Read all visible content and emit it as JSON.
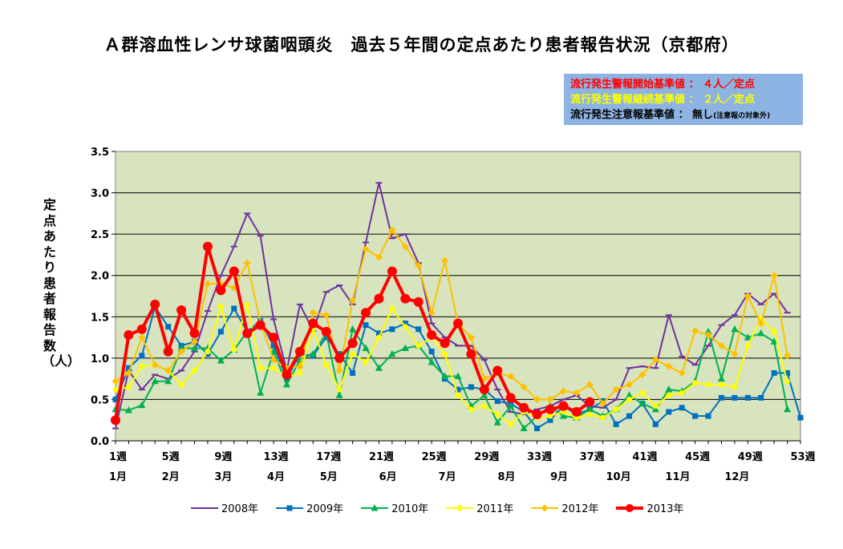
{
  "title": "Ａ群溶血性レンサ球菌咽頭炎　過去５年間の定点あたり患者報告状況（京都府）",
  "info": {
    "line1": "流行発生警報開始基準値 ： ４人／定点",
    "line2": "流行発生警報継続基準値 ： ２人／定点",
    "line3": "流行発生注意報基準値 ： 無し",
    "line3_note": "(注意報の対象外)"
  },
  "ylabel": "定点あたり患者報告数（人）",
  "colors": {
    "plot_bg": "#d7e4bd",
    "info_bg": "#8db3e2"
  },
  "chart_data": {
    "type": "line",
    "ylim": [
      0,
      3.5
    ],
    "yticks": [
      "0.0",
      "0.5",
      "1.0",
      "1.5",
      "2.0",
      "2.5",
      "3.0",
      "3.5"
    ],
    "xlim": [
      1,
      53
    ],
    "week_ticks": [
      {
        "w": 1,
        "label": "1週"
      },
      {
        "w": 5,
        "label": "5週"
      },
      {
        "w": 9,
        "label": "9週"
      },
      {
        "w": 13,
        "label": "13週"
      },
      {
        "w": 17,
        "label": "17週"
      },
      {
        "w": 21,
        "label": "21週"
      },
      {
        "w": 25,
        "label": "25週"
      },
      {
        "w": 29,
        "label": "29週"
      },
      {
        "w": 33,
        "label": "33週"
      },
      {
        "w": 37,
        "label": "37週"
      },
      {
        "w": 41,
        "label": "41週"
      },
      {
        "w": 45,
        "label": "45週"
      },
      {
        "w": 49,
        "label": "49週"
      },
      {
        "w": 53,
        "label": "53週"
      }
    ],
    "month_ticks": [
      {
        "w": 1,
        "label": "1月"
      },
      {
        "w": 5,
        "label": "2月"
      },
      {
        "w": 9,
        "label": "3月"
      },
      {
        "w": 13,
        "label": "4月"
      },
      {
        "w": 17,
        "label": "5月"
      },
      {
        "w": 21.5,
        "label": "6月"
      },
      {
        "w": 26,
        "label": "7月"
      },
      {
        "w": 30.5,
        "label": "8月"
      },
      {
        "w": 34.5,
        "label": "9月"
      },
      {
        "w": 39,
        "label": "10月"
      },
      {
        "w": 43.5,
        "label": "11月"
      },
      {
        "w": 48,
        "label": "12月"
      }
    ],
    "series": [
      {
        "name": "2008年",
        "color": "#7030a0",
        "marker": "dash",
        "width": 2,
        "values": [
          0.15,
          0.85,
          0.62,
          0.8,
          0.75,
          0.85,
          1.08,
          1.57,
          2.0,
          2.35,
          2.75,
          2.48,
          1.47,
          0.85,
          1.65,
          1.33,
          1.8,
          1.88,
          1.65,
          2.4,
          3.12,
          2.45,
          2.5,
          2.15,
          1.42,
          1.25,
          1.15,
          1.15,
          0.98,
          0.62,
          0.35,
          0.32,
          0.38,
          0.42,
          0.5,
          0.55,
          0.42,
          0.4,
          0.5,
          0.88,
          0.9,
          0.88,
          1.52,
          1.02,
          0.92,
          1.15,
          1.4,
          1.52,
          1.78,
          1.65,
          1.78,
          1.55
        ]
      },
      {
        "name": "2009年",
        "color": "#0070c0",
        "marker": "square",
        "width": 2,
        "values": [
          0.5,
          0.88,
          1.03,
          1.62,
          1.38,
          1.15,
          1.2,
          1.05,
          1.32,
          1.6,
          1.32,
          1.45,
          1.15,
          0.75,
          1.05,
          1.03,
          1.25,
          1.05,
          0.82,
          1.4,
          1.3,
          1.35,
          1.42,
          1.35,
          1.08,
          0.75,
          0.62,
          0.65,
          0.62,
          0.48,
          0.45,
          0.35,
          0.15,
          0.25,
          0.42,
          0.32,
          0.38,
          0.48,
          0.2,
          0.3,
          0.45,
          0.2,
          0.35,
          0.4,
          0.3,
          0.3,
          0.52,
          0.52,
          0.52,
          0.52,
          0.82,
          0.82,
          0.28
        ]
      },
      {
        "name": "2010年",
        "color": "#00b050",
        "marker": "triangle",
        "width": 2,
        "values": [
          0.38,
          0.37,
          0.43,
          0.72,
          0.72,
          1.12,
          1.12,
          1.12,
          0.97,
          1.1,
          1.32,
          0.58,
          1.08,
          0.68,
          0.98,
          1.05,
          1.3,
          0.55,
          1.35,
          1.12,
          0.88,
          1.05,
          1.12,
          1.15,
          0.95,
          0.78,
          0.78,
          0.42,
          0.55,
          0.22,
          0.42,
          0.15,
          0.3,
          0.42,
          0.3,
          0.28,
          0.38,
          0.3,
          0.38,
          0.55,
          0.45,
          0.38,
          0.62,
          0.6,
          0.72,
          1.32,
          0.75,
          1.35,
          1.25,
          1.3,
          1.2,
          0.38
        ]
      },
      {
        "name": "2011年",
        "color": "#ffff00",
        "marker": "circle",
        "width": 2,
        "values": [
          0.62,
          0.65,
          0.9,
          0.92,
          0.85,
          0.68,
          0.85,
          1.08,
          1.62,
          1.1,
          1.65,
          0.88,
          0.88,
          0.78,
          0.82,
          1.35,
          0.92,
          0.62,
          1.05,
          0.95,
          1.25,
          1.6,
          1.38,
          1.15,
          1.25,
          1.05,
          0.55,
          0.38,
          0.42,
          0.32,
          0.2,
          0.35,
          0.28,
          0.3,
          0.35,
          0.28,
          0.32,
          0.28,
          0.38,
          0.5,
          0.58,
          0.42,
          0.55,
          0.58,
          0.7,
          0.68,
          0.68,
          0.65,
          1.15,
          1.48,
          1.32,
          0.72
        ]
      },
      {
        "name": "2012年",
        "color": "#ffc000",
        "marker": "diamond",
        "width": 2,
        "values": [
          0.72,
          0.82,
          1.25,
          0.92,
          0.85,
          1.08,
          1.2,
          1.9,
          1.9,
          1.85,
          2.15,
          1.43,
          0.98,
          0.88,
          0.9,
          1.55,
          1.52,
          0.85,
          1.7,
          2.32,
          2.22,
          2.55,
          2.35,
          2.12,
          1.55,
          2.18,
          1.42,
          1.25,
          0.75,
          0.82,
          0.78,
          0.65,
          0.5,
          0.5,
          0.6,
          0.58,
          0.68,
          0.45,
          0.62,
          0.68,
          0.8,
          0.98,
          0.9,
          0.82,
          1.33,
          1.28,
          1.15,
          1.05,
          1.75,
          1.42,
          2.0,
          1.03
        ]
      },
      {
        "name": "2013年",
        "color": "#ff0000",
        "marker": "bigcircle",
        "width": 4,
        "values": [
          0.25,
          1.28,
          1.35,
          1.65,
          1.08,
          1.58,
          1.3,
          2.35,
          1.82,
          2.05,
          1.3,
          1.4,
          1.25,
          0.8,
          1.08,
          1.42,
          1.32,
          1.0,
          1.18,
          1.55,
          1.72,
          2.05,
          1.72,
          1.68,
          1.28,
          1.18,
          1.42,
          1.05,
          0.62,
          0.85,
          0.52,
          0.4,
          0.32,
          0.38,
          0.42,
          0.35,
          0.47
        ]
      }
    ]
  }
}
